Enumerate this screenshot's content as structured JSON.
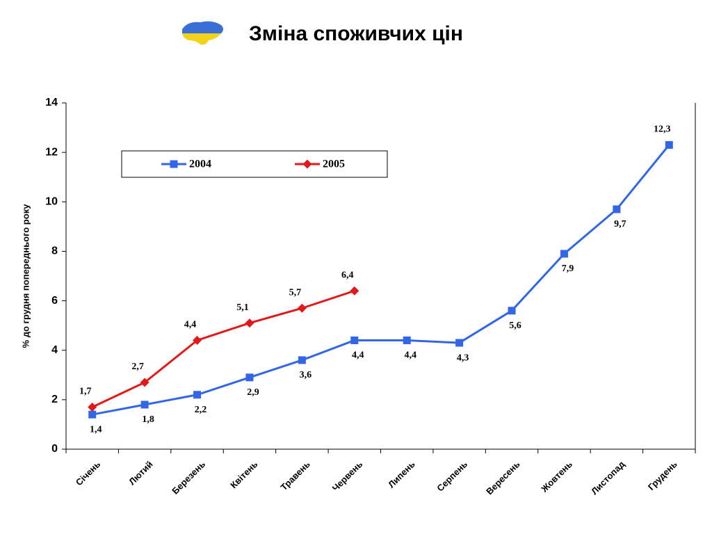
{
  "chart_data": {
    "type": "line",
    "title": "Зміна споживчих цін",
    "y_label": "% до грудня попереднього року",
    "categories": [
      "Січень",
      "Лютий",
      "Березень",
      "Квітень",
      "Травень",
      "Червень",
      "Липень",
      "Серпень",
      "Вересень",
      "Жовтень",
      "Листопад",
      "Грудень"
    ],
    "series": [
      {
        "name": "2004",
        "color": "#3366e6",
        "marker": "square",
        "values": [
          1.4,
          1.8,
          2.2,
          2.9,
          3.6,
          4.4,
          4.4,
          4.3,
          5.6,
          7.9,
          9.7,
          12.3
        ],
        "value_labels": [
          "1,4",
          "1,8",
          "2,2",
          "2,9",
          "3,6",
          "4,4",
          "4,4",
          "4,3",
          "5,6",
          "7,9",
          "9,7",
          "12,3"
        ]
      },
      {
        "name": "2005",
        "color": "#e01a1a",
        "marker": "diamond",
        "values": [
          1.7,
          2.7,
          4.4,
          5.1,
          5.7,
          6.4,
          null,
          null,
          null,
          null,
          null,
          null
        ],
        "value_labels": [
          "1,7",
          "2,7",
          "4,4",
          "5,1",
          "5,7",
          "6,4",
          null,
          null,
          null,
          null,
          null,
          null
        ]
      }
    ],
    "ylim": [
      0,
      14
    ],
    "yticks": [
      0,
      2,
      4,
      6,
      8,
      10,
      12,
      14
    ],
    "grid": false,
    "legend": "top"
  }
}
